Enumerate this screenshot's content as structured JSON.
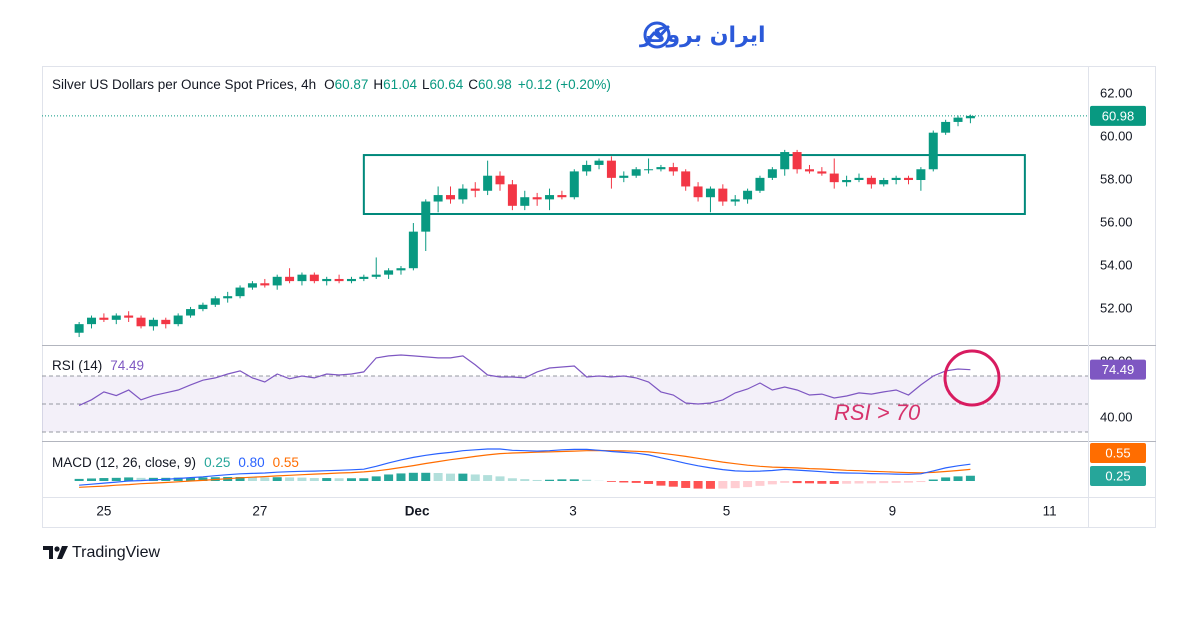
{
  "brand": "ایران بروکر",
  "watermark": "TradingView",
  "chart_data": [
    {
      "type": "candlestick",
      "title": "Silver US Dollars per Ounce Spot Prices, 4h",
      "ohlc_labels": [
        "O",
        "H",
        "L",
        "C"
      ],
      "change": "+0.12 (+0.20%)",
      "xlim": [
        -3,
        81.5
      ],
      "ylim": [
        50.33,
        63.3
      ],
      "yticks": [
        {
          "value": 52,
          "label": "52.00"
        },
        {
          "value": 54,
          "label": "54.00"
        },
        {
          "value": 56,
          "label": "56.00"
        },
        {
          "value": 58,
          "label": "58.00"
        },
        {
          "value": 60,
          "label": "60.00"
        },
        {
          "value": 62,
          "label": "62.00"
        }
      ],
      "grid": false,
      "up_color": "#089981",
      "down_color": "#f23645",
      "open": [
        50.9,
        51.3,
        51.6,
        51.5,
        51.7,
        51.6,
        51.2,
        51.5,
        51.3,
        51.7,
        52.0,
        52.2,
        52.5,
        52.6,
        53.0,
        53.2,
        53.1,
        53.5,
        53.3,
        53.6,
        53.3,
        53.4,
        53.3,
        53.4,
        53.5,
        53.6,
        53.8,
        53.9,
        55.6,
        57.0,
        57.3,
        57.1,
        57.6,
        57.5,
        58.2,
        57.8,
        56.8,
        57.2,
        57.1,
        57.3,
        57.2,
        58.4,
        58.7,
        58.9,
        58.1,
        58.2,
        58.5,
        58.5,
        58.6,
        58.4,
        57.7,
        57.2,
        57.6,
        57.0,
        57.1,
        57.5,
        58.1,
        58.5,
        59.3,
        58.5,
        58.4,
        58.3,
        57.9,
        58.0,
        58.1,
        57.8,
        58.0,
        58.1,
        58.0,
        58.5,
        60.2,
        60.7,
        60.87
      ],
      "high": [
        51.4,
        51.7,
        51.8,
        51.8,
        51.9,
        51.7,
        51.6,
        51.6,
        51.8,
        52.1,
        52.3,
        52.6,
        52.8,
        53.1,
        53.3,
        53.4,
        53.6,
        53.9,
        53.7,
        53.7,
        53.5,
        53.6,
        53.5,
        53.6,
        54.4,
        53.9,
        54.0,
        56.0,
        57.1,
        57.7,
        57.7,
        57.8,
        57.9,
        58.9,
        58.4,
        58.0,
        57.5,
        57.4,
        57.6,
        57.5,
        58.5,
        58.9,
        59.0,
        59.1,
        58.4,
        58.6,
        59.0,
        58.7,
        58.8,
        58.5,
        57.9,
        57.7,
        57.8,
        57.3,
        57.6,
        58.2,
        58.6,
        59.4,
        59.4,
        58.7,
        58.6,
        59.0,
        58.2,
        58.3,
        58.2,
        58.1,
        58.2,
        58.2,
        58.6,
        60.3,
        60.8,
        61.0,
        61.04
      ],
      "low": [
        50.7,
        51.1,
        51.4,
        51.3,
        51.4,
        51.1,
        51.0,
        51.1,
        51.2,
        51.6,
        51.9,
        52.1,
        52.3,
        52.5,
        52.9,
        53.0,
        52.9,
        53.2,
        53.1,
        53.2,
        53.1,
        53.2,
        53.2,
        53.3,
        53.4,
        53.4,
        53.6,
        53.8,
        54.7,
        56.5,
        56.9,
        56.9,
        57.2,
        57.3,
        57.5,
        56.6,
        56.6,
        56.8,
        56.6,
        57.1,
        57.1,
        58.2,
        58.5,
        57.6,
        57.9,
        58.1,
        58.3,
        58.4,
        58.2,
        57.5,
        57.0,
        56.5,
        56.8,
        56.8,
        56.9,
        57.4,
        58.0,
        58.2,
        58.3,
        58.3,
        58.2,
        57.6,
        57.7,
        57.9,
        57.6,
        57.7,
        57.8,
        57.8,
        57.5,
        58.4,
        60.1,
        60.5,
        60.64
      ],
      "close": [
        51.3,
        51.6,
        51.5,
        51.7,
        51.6,
        51.2,
        51.5,
        51.3,
        51.7,
        52.0,
        52.2,
        52.5,
        52.6,
        53.0,
        53.2,
        53.1,
        53.5,
        53.3,
        53.6,
        53.3,
        53.4,
        53.3,
        53.4,
        53.5,
        53.6,
        53.8,
        53.9,
        55.6,
        57.0,
        57.3,
        57.1,
        57.6,
        57.5,
        58.2,
        57.8,
        56.8,
        57.2,
        57.1,
        57.3,
        57.2,
        58.4,
        58.7,
        58.9,
        58.1,
        58.2,
        58.5,
        58.5,
        58.6,
        58.4,
        57.7,
        57.2,
        57.6,
        57.0,
        57.1,
        57.5,
        58.1,
        58.5,
        59.3,
        58.5,
        58.4,
        58.3,
        57.9,
        58.0,
        58.1,
        57.8,
        58.0,
        58.1,
        58.0,
        58.5,
        60.2,
        60.7,
        60.9,
        60.98
      ],
      "range_box": {
        "from": 23.0,
        "to": 76.4,
        "top": 59.16,
        "bottom": 56.42,
        "color": "#00897b"
      }
    },
    {
      "type": "line",
      "title": "RSI (14)",
      "annotation": "RSI > 70",
      "xlim": [
        -3,
        81.5
      ],
      "ylim": [
        23.6,
        92.1
      ],
      "yticks": [
        {
          "value": 40,
          "label": "40.00"
        },
        {
          "value": 80,
          "label": "80.00"
        }
      ],
      "levels": {
        "upper": 70,
        "middle": 50,
        "lower": 30
      },
      "series": [
        {
          "name": "RSI",
          "color": "#7e57c2",
          "values": [
            49,
            53,
            58.6,
            56,
            60,
            53,
            56,
            58,
            60,
            63.6,
            67,
            68.6,
            71.4,
            73.6,
            68.6,
            65.7,
            71.4,
            68,
            70,
            68.6,
            71.4,
            70.7,
            71.4,
            72.9,
            82.9,
            84.3,
            85,
            84.3,
            83.6,
            82.9,
            82.9,
            84.3,
            77.9,
            70.7,
            69.3,
            69.3,
            68.6,
            72.9,
            75.7,
            76.4,
            77.1,
            69.3,
            70,
            69.3,
            70,
            68.6,
            65.7,
            58.6,
            56.4,
            50.7,
            50,
            50.7,
            52.9,
            57.9,
            60.7,
            65,
            60,
            62.1,
            60,
            56.4,
            57.1,
            54.3,
            55.7,
            57.9,
            57.1,
            58.6,
            60,
            56.4,
            63.6,
            70,
            73.6,
            75,
            74.49
          ]
        }
      ]
    },
    {
      "type": "macd",
      "title": "MACD (12, 26, close, 9)",
      "xlim": [
        -3,
        81.5
      ],
      "ylim": [
        -0.76,
        1.9
      ],
      "xticks": [
        {
          "value": 2.0,
          "label": "25"
        },
        {
          "value": 14.6,
          "label": "27"
        },
        {
          "value": 27.3,
          "label": "Dec"
        },
        {
          "value": 39.9,
          "label": "3"
        },
        {
          "value": 52.3,
          "label": "5"
        },
        {
          "value": 65.7,
          "label": "9"
        },
        {
          "value": 78.4,
          "label": "11"
        }
      ],
      "series": [
        {
          "name": "Signal",
          "color": "#ff6d00",
          "values": [
            -0.3,
            -0.27,
            -0.24,
            -0.2,
            -0.17,
            -0.13,
            -0.1,
            -0.07,
            -0.04,
            0.0,
            0.03,
            0.07,
            0.11,
            0.15,
            0.18,
            0.21,
            0.24,
            0.27,
            0.3,
            0.33,
            0.35,
            0.38,
            0.4,
            0.43,
            0.48,
            0.55,
            0.64,
            0.73,
            0.83,
            0.92,
            1.01,
            1.09,
            1.17,
            1.24,
            1.3,
            1.33,
            1.35,
            1.37,
            1.38,
            1.4,
            1.42,
            1.44,
            1.45,
            1.44,
            1.43,
            1.41,
            1.38,
            1.32,
            1.25,
            1.17,
            1.08,
            0.99,
            0.9,
            0.82,
            0.75,
            0.7,
            0.66,
            0.64,
            0.62,
            0.59,
            0.57,
            0.54,
            0.51,
            0.49,
            0.46,
            0.44,
            0.42,
            0.4,
            0.39,
            0.41,
            0.45,
            0.5,
            0.55
          ]
        },
        {
          "name": "MACD",
          "color": "#2962ff",
          "values": [
            -0.2,
            -0.15,
            -0.1,
            -0.05,
            0.0,
            0.02,
            0.05,
            0.08,
            0.12,
            0.16,
            0.2,
            0.25,
            0.3,
            0.34,
            0.36,
            0.38,
            0.42,
            0.44,
            0.46,
            0.47,
            0.49,
            0.51,
            0.53,
            0.56,
            0.7,
            0.86,
            1.0,
            1.12,
            1.22,
            1.3,
            1.36,
            1.44,
            1.48,
            1.52,
            1.52,
            1.46,
            1.44,
            1.42,
            1.44,
            1.48,
            1.5,
            1.5,
            1.46,
            1.4,
            1.36,
            1.32,
            1.24,
            1.1,
            0.98,
            0.84,
            0.72,
            0.62,
            0.54,
            0.48,
            0.46,
            0.47,
            0.5,
            0.55,
            0.52,
            0.48,
            0.44,
            0.4,
            0.38,
            0.37,
            0.35,
            0.34,
            0.33,
            0.32,
            0.34,
            0.48,
            0.62,
            0.72,
            0.8
          ],
          "value_labels": [
            null,
            null,
            null,
            null,
            null,
            null,
            null,
            null,
            null,
            null,
            null,
            null,
            null,
            null,
            null,
            null,
            null,
            null,
            null,
            null,
            null,
            null,
            null,
            null,
            null,
            null,
            null,
            null,
            null,
            null,
            null,
            null,
            null,
            null,
            null,
            null,
            null,
            null,
            null,
            null,
            null,
            null,
            null,
            null,
            null,
            null,
            null,
            null,
            null,
            null,
            null,
            null,
            null,
            null,
            null,
            null,
            null,
            null,
            null,
            null,
            null,
            null,
            null,
            null,
            null,
            null,
            null,
            null,
            null,
            null,
            null,
            null,
            "0.80"
          ]
        },
        {
          "name": "Histogram",
          "color": "#26a69a",
          "colors": [
            "#26a69a",
            "#b2dfdb",
            "#ffcdd2",
            "#ff5252"
          ],
          "values": [
            0.1,
            0.12,
            0.14,
            0.15,
            0.17,
            0.15,
            0.15,
            0.15,
            0.16,
            0.16,
            0.17,
            0.18,
            0.19,
            0.19,
            0.18,
            0.17,
            0.18,
            0.17,
            0.16,
            0.14,
            0.14,
            0.13,
            0.13,
            0.13,
            0.22,
            0.31,
            0.36,
            0.39,
            0.39,
            0.38,
            0.35,
            0.35,
            0.31,
            0.28,
            0.22,
            0.13,
            0.09,
            0.05,
            0.06,
            0.08,
            0.08,
            0.06,
            0.01,
            -0.04,
            -0.07,
            -0.09,
            -0.14,
            -0.22,
            -0.27,
            -0.33,
            -0.36,
            -0.37,
            -0.36,
            -0.34,
            -0.29,
            -0.23,
            -0.16,
            -0.09,
            -0.1,
            -0.11,
            -0.13,
            -0.14,
            -0.13,
            -0.12,
            -0.11,
            -0.1,
            -0.09,
            -0.08,
            -0.05,
            0.07,
            0.17,
            0.22,
            0.25
          ]
        }
      ]
    }
  ]
}
